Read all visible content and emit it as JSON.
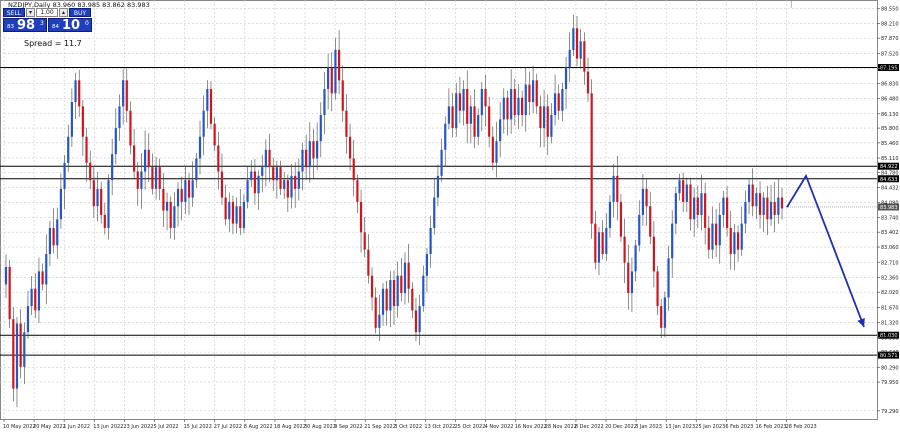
{
  "header": {
    "symbol_info": "NZDJPY,Daily  83.960 83.985 83.862 83.983",
    "menu_glyph": "|"
  },
  "trade_panel": {
    "sell_label": "SELL",
    "buy_label": "BUY",
    "lot": "1.00",
    "dec_glyph": "▾",
    "inc_glyph": "▴",
    "sell_prefix": "83",
    "sell_big": "98",
    "sell_sup": "3",
    "buy_prefix": "84",
    "buy_big": "10",
    "buy_sup": "0",
    "spread": "Spread = 11.7"
  },
  "colors": {
    "bull": "#2456c8",
    "bear": "#d0161c",
    "grid": "#c8c8c8",
    "level_line": "#000000",
    "arrow": "#1f2fb0",
    "background": "#ffffff"
  },
  "chart_data": {
    "type": "candlestick",
    "symbol": "NZDJPY",
    "timeframe": "Daily",
    "ylim": [
      79.1,
      88.75
    ],
    "grid": true,
    "y_ticks": [
      "88.550",
      "88.210",
      "87.870",
      "87.520",
      "87.170",
      "86.830",
      "86.480",
      "86.130",
      "85.800",
      "85.460",
      "85.110",
      "84.780",
      "84.432",
      "84.090",
      "83.740",
      "83.402",
      "83.060",
      "82.710",
      "82.360",
      "82.020",
      "81.670",
      "81.320",
      "80.980",
      "80.640",
      "80.290",
      "79.950",
      "79.290"
    ],
    "y_tick_values": [
      88.55,
      88.21,
      87.87,
      87.52,
      87.17,
      86.83,
      86.48,
      86.13,
      85.8,
      85.46,
      85.11,
      84.78,
      84.432,
      84.09,
      83.74,
      83.402,
      83.06,
      82.71,
      82.36,
      82.02,
      81.67,
      81.32,
      80.98,
      80.64,
      80.29,
      79.95,
      79.29
    ],
    "x_ticks": [
      "10 May 2022",
      "20 May 2022",
      "1 Jun 2022",
      "13 Jun 2022",
      "23 Jun 2022",
      "5 Jul 2022",
      "15 Jul 2022",
      "27 Jul 2022",
      "8 Aug 2022",
      "18 Aug 2022",
      "30 Aug 2022",
      "9 Sep 2022",
      "21 Sep 2022",
      "3 Oct 2022",
      "13 Oct 2022",
      "25 Oct 2022",
      "4 Nov 2022",
      "16 Nov 2022",
      "28 Nov 2022",
      "8 Dec 2022",
      "20 Dec 2022",
      "3 Jan 2023",
      "13 Jan 2023",
      "25 Jan 2023",
      "6 Feb 2023",
      "16 Feb 2023",
      "28 Feb 2023"
    ],
    "levels": [
      {
        "value": 87.195,
        "label": "87.195"
      },
      {
        "value": 84.922,
        "label": "84.922"
      },
      {
        "value": 84.633,
        "label": "84.633"
      },
      {
        "value": 81.03,
        "label": "81.030"
      },
      {
        "value": 80.571,
        "label": "80.571"
      }
    ],
    "current_price": {
      "value": 83.983,
      "label": "83.983"
    },
    "path": [
      82.6,
      81.4,
      79.8,
      81.3,
      80.3,
      81.1,
      81.7,
      82.1,
      81.6,
      82.5,
      82.2,
      82.9,
      83.5,
      83.1,
      83.7,
      84.4,
      85.0,
      85.6,
      86.4,
      86.9,
      86.3,
      85.6,
      85.0,
      84.6,
      84.0,
      84.4,
      83.8,
      83.5,
      84.6,
      85.2,
      85.8,
      86.3,
      86.9,
      86.2,
      85.4,
      84.8,
      84.4,
      84.8,
      85.3,
      84.9,
      84.4,
      84.9,
      84.4,
      83.9,
      84.1,
      83.5,
      84.0,
      84.4,
      84.1,
      84.6,
      84.2,
      84.6,
      85.1,
      85.6,
      86.2,
      86.7,
      85.9,
      85.4,
      84.8,
      84.2,
      83.7,
      84.1,
      83.6,
      84.0,
      83.5,
      84.1,
      84.6,
      84.8,
      84.3,
      84.7,
      84.9,
      85.3,
      84.9,
      84.6,
      84.9,
      84.4,
      84.6,
      84.2,
      84.7,
      84.4,
      84.8,
      85.3,
      84.9,
      85.5,
      85.1,
      85.5,
      86.1,
      86.7,
      87.2,
      86.6,
      87.6,
      86.9,
      86.2,
      85.6,
      85.1,
      84.6,
      84.1,
      83.4,
      83.0,
      82.4,
      81.9,
      81.2,
      81.5,
      82.1,
      81.6,
      82.3,
      81.7,
      82.4,
      82.0,
      82.7,
      82.1,
      81.6,
      81.1,
      81.7,
      82.4,
      82.9,
      83.5,
      84.2,
      84.7,
      85.3,
      85.9,
      86.3,
      85.8,
      86.6,
      86.2,
      86.7,
      85.9,
      86.3,
      85.6,
      86.1,
      86.7,
      86.3,
      85.6,
      85.0,
      85.5,
      86.0,
      86.5,
      86.0,
      86.7,
      86.1,
      86.5,
      86.1,
      86.8,
      86.4,
      86.9,
      86.3,
      85.8,
      86.3,
      85.6,
      86.1,
      86.6,
      86.2,
      86.7,
      87.2,
      87.6,
      88.1,
      87.4,
      87.8,
      87.1,
      86.6,
      83.6,
      82.7,
      83.4,
      82.9,
      83.5,
      84.1,
      84.7,
      84.1,
      83.3,
      82.7,
      82.0,
      82.5,
      83.1,
      83.8,
      84.4,
      84.0,
      83.3,
      82.5,
      81.7,
      81.2,
      81.9,
      82.8,
      83.6,
      84.3,
      84.6,
      84.1,
      84.5,
      83.7,
      84.2,
      83.8,
      84.3,
      83.5,
      83.0,
      83.6,
      83.1,
      83.8,
      84.2,
      83.5,
      82.9,
      83.4,
      83.0,
      83.6,
      84.1,
      84.5,
      84.0,
      84.3,
      83.8,
      84.2,
      83.7,
      84.1,
      83.8,
      84.2,
      83.95
    ]
  }
}
